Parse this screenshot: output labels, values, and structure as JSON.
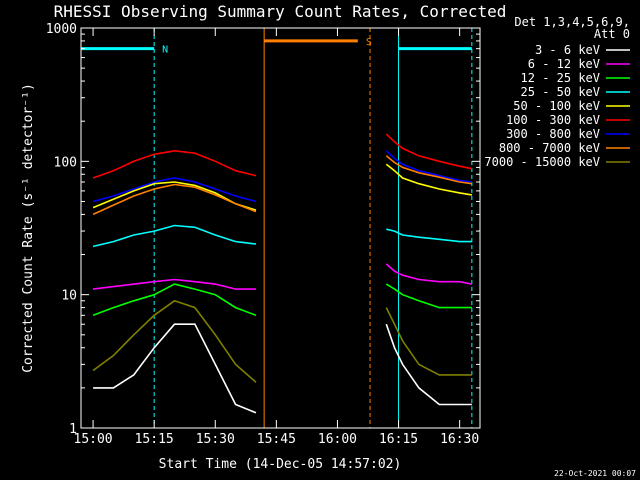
{
  "chart_data": {
    "type": "line",
    "title": "RHESSI Observing Summary Count Rates, Corrected",
    "xlabel": "Start Time (14-Dec-05 14:57:02)",
    "ylabel": "Corrected Count Rate (s⁻¹ detector⁻¹)",
    "yscale": "log",
    "ylim": [
      1,
      1000
    ],
    "xlim": [
      "14:57:02",
      "16:35:00"
    ],
    "x_ticks": [
      "15:00",
      "15:15",
      "15:30",
      "15:45",
      "16:00",
      "16:15",
      "16:30"
    ],
    "y_ticks": [
      "1",
      "10",
      "100",
      "1000"
    ],
    "legend_header": [
      "Det 1,3,4,5,6,9,",
      "Att 0"
    ],
    "legend_position": "right",
    "footer": "22-Oct-2021 00:07",
    "series": [
      {
        "name": "3 - 6 keV",
        "color": "#ffffff",
        "points": [
          [
            "15:00",
            2
          ],
          [
            "15:05",
            2
          ],
          [
            "15:10",
            2.5
          ],
          [
            "15:15",
            4
          ],
          [
            "15:20",
            6
          ],
          [
            "15:25",
            6
          ],
          [
            "15:30",
            3
          ],
          [
            "15:35",
            1.5
          ],
          [
            "15:40",
            1.3
          ],
          [
            "16:12",
            6
          ],
          [
            "16:14",
            4
          ],
          [
            "16:16",
            3
          ],
          [
            "16:20",
            2
          ],
          [
            "16:25",
            1.5
          ],
          [
            "16:30",
            1.5
          ],
          [
            "16:33",
            1.5
          ]
        ]
      },
      {
        "name": "6 - 12 keV",
        "color": "#ff00ff",
        "points": [
          [
            "15:00",
            11
          ],
          [
            "15:05",
            11.5
          ],
          [
            "15:10",
            12
          ],
          [
            "15:15",
            12.5
          ],
          [
            "15:20",
            13
          ],
          [
            "15:25",
            12.5
          ],
          [
            "15:30",
            12
          ],
          [
            "15:35",
            11
          ],
          [
            "15:40",
            11
          ],
          [
            "16:12",
            17
          ],
          [
            "16:14",
            15
          ],
          [
            "16:16",
            14
          ],
          [
            "16:20",
            13
          ],
          [
            "16:25",
            12.5
          ],
          [
            "16:30",
            12.5
          ],
          [
            "16:33",
            12
          ]
        ]
      },
      {
        "name": "12 - 25 keV",
        "color": "#00ff00",
        "points": [
          [
            "15:00",
            7
          ],
          [
            "15:05",
            8
          ],
          [
            "15:10",
            9
          ],
          [
            "15:15",
            10
          ],
          [
            "15:20",
            12
          ],
          [
            "15:25",
            11
          ],
          [
            "15:30",
            10
          ],
          [
            "15:35",
            8
          ],
          [
            "15:40",
            7
          ],
          [
            "16:12",
            12
          ],
          [
            "16:14",
            11
          ],
          [
            "16:16",
            10
          ],
          [
            "16:20",
            9
          ],
          [
            "16:25",
            8
          ],
          [
            "16:30",
            8
          ],
          [
            "16:33",
            8
          ]
        ]
      },
      {
        "name": "25 - 50 keV",
        "color": "#00ffff",
        "points": [
          [
            "15:00",
            23
          ],
          [
            "15:05",
            25
          ],
          [
            "15:10",
            28
          ],
          [
            "15:15",
            30
          ],
          [
            "15:20",
            33
          ],
          [
            "15:25",
            32
          ],
          [
            "15:30",
            28
          ],
          [
            "15:35",
            25
          ],
          [
            "15:40",
            24
          ],
          [
            "16:12",
            31
          ],
          [
            "16:14",
            30
          ],
          [
            "16:16",
            28
          ],
          [
            "16:20",
            27
          ],
          [
            "16:25",
            26
          ],
          [
            "16:30",
            25
          ],
          [
            "16:33",
            25
          ]
        ]
      },
      {
        "name": "50 - 100 keV",
        "color": "#ffff00",
        "points": [
          [
            "15:00",
            45
          ],
          [
            "15:05",
            52
          ],
          [
            "15:10",
            60
          ],
          [
            "15:15",
            68
          ],
          [
            "15:20",
            70
          ],
          [
            "15:25",
            66
          ],
          [
            "15:30",
            58
          ],
          [
            "15:35",
            48
          ],
          [
            "15:40",
            43
          ],
          [
            "16:12",
            95
          ],
          [
            "16:14",
            85
          ],
          [
            "16:16",
            75
          ],
          [
            "16:20",
            68
          ],
          [
            "16:25",
            62
          ],
          [
            "16:30",
            58
          ],
          [
            "16:33",
            56
          ]
        ]
      },
      {
        "name": "100 - 300 keV",
        "color": "#ff0000",
        "points": [
          [
            "15:00",
            75
          ],
          [
            "15:05",
            85
          ],
          [
            "15:10",
            100
          ],
          [
            "15:15",
            113
          ],
          [
            "15:20",
            120
          ],
          [
            "15:25",
            115
          ],
          [
            "15:30",
            100
          ],
          [
            "15:35",
            85
          ],
          [
            "15:40",
            78
          ],
          [
            "16:12",
            160
          ],
          [
            "16:14",
            140
          ],
          [
            "16:16",
            125
          ],
          [
            "16:20",
            110
          ],
          [
            "16:25",
            100
          ],
          [
            "16:30",
            92
          ],
          [
            "16:33",
            88
          ]
        ]
      },
      {
        "name": "300 - 800 keV",
        "color": "#0000ff",
        "points": [
          [
            "15:00",
            50
          ],
          [
            "15:05",
            55
          ],
          [
            "15:10",
            62
          ],
          [
            "15:15",
            70
          ],
          [
            "15:20",
            75
          ],
          [
            "15:25",
            70
          ],
          [
            "15:30",
            62
          ],
          [
            "15:35",
            55
          ],
          [
            "15:40",
            50
          ],
          [
            "16:12",
            120
          ],
          [
            "16:14",
            105
          ],
          [
            "16:16",
            95
          ],
          [
            "16:20",
            85
          ],
          [
            "16:25",
            78
          ],
          [
            "16:30",
            72
          ],
          [
            "16:33",
            70
          ]
        ]
      },
      {
        "name": "800 - 7000 keV",
        "color": "#ff8000",
        "points": [
          [
            "15:00",
            40
          ],
          [
            "15:05",
            47
          ],
          [
            "15:10",
            55
          ],
          [
            "15:15",
            62
          ],
          [
            "15:20",
            67
          ],
          [
            "15:25",
            64
          ],
          [
            "15:30",
            56
          ],
          [
            "15:35",
            48
          ],
          [
            "15:40",
            42
          ],
          [
            "16:12",
            110
          ],
          [
            "16:14",
            98
          ],
          [
            "16:16",
            90
          ],
          [
            "16:20",
            82
          ],
          [
            "16:25",
            76
          ],
          [
            "16:30",
            70
          ],
          [
            "16:33",
            68
          ]
        ]
      },
      {
        "name": "7000 - 15000 keV",
        "color": "#808000",
        "points": [
          [
            "15:00",
            2.7
          ],
          [
            "15:05",
            3.5
          ],
          [
            "15:10",
            5
          ],
          [
            "15:15",
            7
          ],
          [
            "15:20",
            9
          ],
          [
            "15:25",
            8
          ],
          [
            "15:30",
            5
          ],
          [
            "15:35",
            3
          ],
          [
            "15:40",
            2.2
          ],
          [
            "16:12",
            8
          ],
          [
            "16:14",
            6
          ],
          [
            "16:16",
            4.5
          ],
          [
            "16:20",
            3
          ],
          [
            "16:25",
            2.5
          ],
          [
            "16:30",
            2.5
          ],
          [
            "16:33",
            2.5
          ]
        ]
      }
    ],
    "flags": [
      {
        "label": "N",
        "color": "#00ffff",
        "level": 700,
        "segments": [
          [
            "14:57:02",
            "15:15"
          ],
          [
            "16:15",
            "16:33"
          ]
        ]
      },
      {
        "label": "S",
        "color": "#ff8000",
        "level": 800,
        "segments": [
          [
            "15:42",
            "16:05"
          ]
        ]
      }
    ],
    "vlines": [
      {
        "time": "15:15",
        "color": "#00ffff",
        "style": "dashed"
      },
      {
        "time": "16:33",
        "color": "#00ffff",
        "style": "dashed"
      },
      {
        "time": "16:15",
        "color": "#00ffff",
        "style": "solid"
      },
      {
        "time": "15:42",
        "color": "#ff8000",
        "style": "solid"
      },
      {
        "time": "16:08",
        "color": "#ff8000",
        "style": "dashed"
      }
    ]
  }
}
